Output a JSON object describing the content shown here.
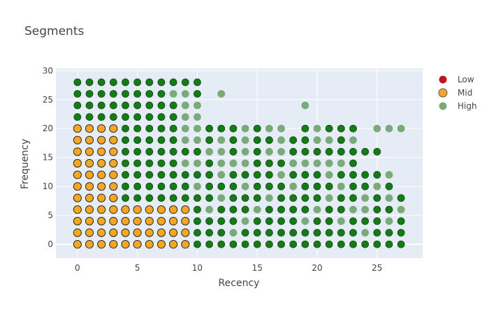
{
  "chart_data": {
    "type": "scatter",
    "title": "Segments",
    "xlabel": "Recency",
    "ylabel": "Frequency",
    "xlim": [
      -1.8,
      28.8
    ],
    "ylim": [
      -2.4,
      30.4
    ],
    "x_ticks": [
      0,
      5,
      10,
      15,
      20,
      25
    ],
    "y_ticks": [
      0,
      5,
      10,
      15,
      20,
      25,
      30
    ],
    "grid": true,
    "legend_position": "top-right",
    "colors": {
      "plot_background": "#e5ecf6",
      "grid": "#ffffff",
      "low": "#c0141c",
      "mid": "#f5a623",
      "high_dark": "#167a16",
      "high_light": "#7aaa7a"
    },
    "series": [
      {
        "name": "Low",
        "points": []
      },
      {
        "name": "Mid",
        "region": "Recency 0–9 for Frequency 0–6; Recency 0–3 for Frequency 8–20 (step 2)",
        "recency_range_low_frequency": [
          0,
          9
        ],
        "recency_range_high_frequency": [
          0,
          3
        ],
        "frequency_values": [
          0,
          2,
          4,
          6,
          8,
          10,
          12,
          14,
          16,
          18,
          20
        ]
      },
      {
        "name": "High",
        "frequency_values": [
          0,
          2,
          4,
          6,
          8,
          10,
          12,
          14,
          16,
          18,
          20,
          22,
          24,
          26,
          28
        ],
        "recency_range": [
          0,
          27
        ]
      }
    ]
  }
}
